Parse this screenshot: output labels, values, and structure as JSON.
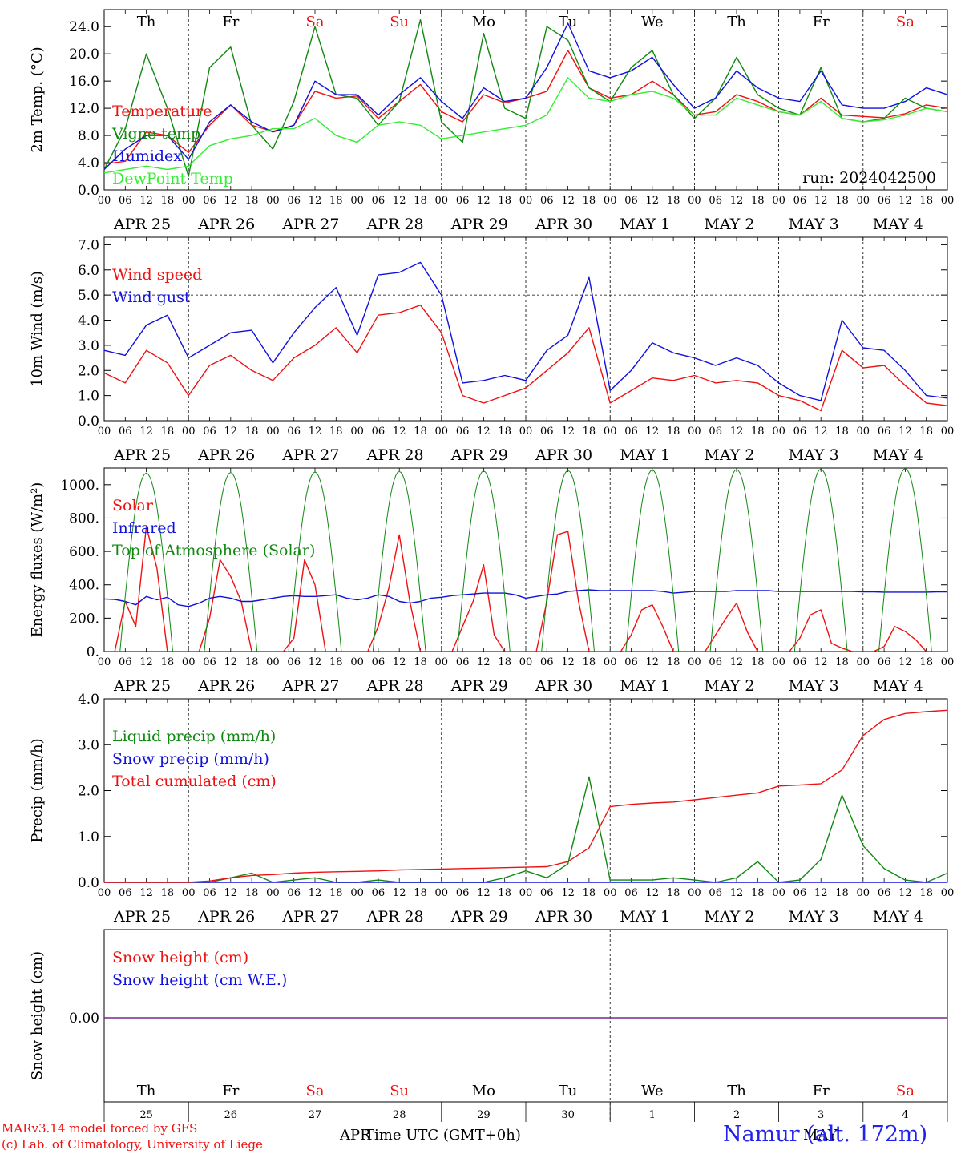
{
  "chart_data": [
    {
      "type": "line",
      "ylabel": "2m Temp. (°C)",
      "ylim": [
        0,
        26.5
      ],
      "yticks": [
        "0.0",
        "4.0",
        "8.0",
        "12.0",
        "16.0",
        "20.0",
        "24.0"
      ],
      "day_names": [
        "Th",
        "Fr",
        "Sa",
        "Su",
        "Mo",
        "Tu",
        "We",
        "Th",
        "Fr",
        "Sa"
      ],
      "day_colors": [
        "#000000",
        "#000000",
        "#ee1111",
        "#ee1111",
        "#000000",
        "#000000",
        "#000000",
        "#000000",
        "#000000",
        "#ee1111"
      ],
      "run_label": "run: 2024042500",
      "x_hours": [
        0,
        6,
        12,
        18,
        24,
        30,
        36,
        42,
        48,
        54,
        60,
        66,
        72,
        78,
        84,
        90,
        96,
        102,
        108,
        114,
        120,
        126,
        132,
        138,
        144,
        150,
        156,
        162,
        168,
        174,
        180,
        186,
        192,
        198,
        204,
        210,
        216,
        222,
        228,
        234,
        240
      ],
      "series": [
        {
          "name": "Temperature",
          "color": "#ee1111",
          "values": [
            3.8,
            4.2,
            8.5,
            8.0,
            5.5,
            9.5,
            12.5,
            9.5,
            8.6,
            9.5,
            14.5,
            13.5,
            13.8,
            10.5,
            13.0,
            15.5,
            11.5,
            10.0,
            14.0,
            12.8,
            13.5,
            14.5,
            20.5,
            15.0,
            13.5,
            14.0,
            16.0,
            14.0,
            11.0,
            11.5,
            14.0,
            13.0,
            11.5,
            11.0,
            13.5,
            11.0,
            10.8,
            10.6,
            11.2,
            12.5,
            12.0
          ]
        },
        {
          "name": "Vigne temp",
          "color": "#118811",
          "values": [
            3.0,
            9.0,
            20.0,
            12.0,
            2.0,
            18.0,
            21.0,
            9.5,
            6.0,
            13.0,
            24.0,
            14.0,
            13.5,
            9.5,
            13.0,
            25.0,
            10.0,
            7.0,
            23.0,
            12.0,
            10.5,
            24.0,
            22.0,
            15.0,
            13.0,
            18.0,
            20.5,
            14.0,
            10.5,
            13.5,
            19.5,
            14.0,
            12.0,
            11.0,
            18.0,
            10.5,
            10.0,
            10.5,
            13.5,
            12.0,
            11.5
          ]
        },
        {
          "name": "Humidex",
          "color": "#1111dd",
          "values": [
            3.0,
            6.0,
            8.0,
            8.0,
            4.5,
            10.0,
            12.5,
            10.0,
            8.5,
            9.5,
            16.0,
            14.0,
            14.0,
            11.0,
            14.0,
            16.5,
            13.0,
            10.5,
            15.0,
            13.0,
            13.5,
            18.0,
            24.5,
            17.5,
            16.5,
            17.5,
            19.5,
            15.5,
            12.0,
            13.5,
            17.5,
            15.0,
            13.5,
            13.0,
            17.5,
            12.5,
            12.0,
            12.0,
            13.0,
            15.0,
            14.0
          ]
        },
        {
          "name": "DewPoint Temp",
          "color": "#33ee33",
          "values": [
            2.5,
            3.0,
            3.5,
            3.0,
            3.5,
            6.5,
            7.5,
            8.0,
            9.0,
            9.0,
            10.5,
            8.0,
            7.0,
            9.5,
            10.0,
            9.5,
            7.5,
            8.0,
            8.5,
            9.0,
            9.5,
            11.0,
            16.5,
            13.5,
            13.0,
            14.0,
            14.5,
            13.5,
            11.0,
            11.0,
            13.5,
            12.5,
            11.5,
            11.0,
            13.0,
            10.5,
            10.0,
            10.3,
            11.0,
            12.0,
            11.5
          ]
        }
      ]
    },
    {
      "type": "line",
      "ylabel": "10m Wind (m/s)",
      "ylim": [
        0,
        7.3
      ],
      "yticks": [
        "0.0",
        "1.0",
        "2.0",
        "3.0",
        "4.0",
        "5.0",
        "6.0",
        "7.0"
      ],
      "ref_line": 5.0,
      "x_hours": [
        0,
        6,
        12,
        18,
        24,
        30,
        36,
        42,
        48,
        54,
        60,
        66,
        72,
        78,
        84,
        90,
        96,
        102,
        108,
        114,
        120,
        126,
        132,
        138,
        144,
        150,
        156,
        162,
        168,
        174,
        180,
        186,
        192,
        198,
        204,
        210,
        216,
        222,
        228,
        234,
        240
      ],
      "series": [
        {
          "name": "Wind speed",
          "color": "#ee1111",
          "values": [
            1.9,
            1.5,
            2.8,
            2.3,
            1.0,
            2.2,
            2.6,
            2.0,
            1.6,
            2.5,
            3.0,
            3.7,
            2.7,
            4.2,
            4.3,
            4.6,
            3.5,
            1.0,
            0.7,
            1.0,
            1.3,
            2.0,
            2.7,
            3.7,
            0.7,
            1.2,
            1.7,
            1.6,
            1.8,
            1.5,
            1.6,
            1.5,
            1.0,
            0.8,
            0.4,
            2.8,
            2.1,
            2.2,
            1.4,
            0.7,
            0.6
          ]
        },
        {
          "name": "Wind gust",
          "color": "#1111dd",
          "values": [
            2.8,
            2.6,
            3.8,
            4.2,
            2.5,
            3.0,
            3.5,
            3.6,
            2.3,
            3.5,
            4.5,
            5.3,
            3.4,
            5.8,
            5.9,
            6.3,
            5.0,
            1.5,
            1.6,
            1.8,
            1.6,
            2.8,
            3.4,
            5.7,
            1.2,
            2.0,
            3.1,
            2.7,
            2.5,
            2.2,
            2.5,
            2.2,
            1.5,
            1.0,
            0.8,
            4.0,
            2.9,
            2.8,
            2.0,
            1.0,
            0.9
          ]
        }
      ]
    },
    {
      "type": "line",
      "ylabel": "Energy fluxes (W/m²)",
      "ylim": [
        0,
        1100
      ],
      "yticks": [
        "0.",
        "200.",
        "400.",
        "600.",
        "800.",
        "1000."
      ],
      "x_hours": [
        0,
        3,
        6,
        9,
        12,
        15,
        18,
        21,
        24,
        27,
        30,
        33,
        36,
        39,
        42,
        45,
        48,
        51,
        54,
        57,
        60,
        63,
        66,
        69,
        72,
        75,
        78,
        81,
        84,
        87,
        90,
        93,
        96,
        99,
        102,
        105,
        108,
        111,
        114,
        117,
        120,
        123,
        126,
        129,
        132,
        135,
        138,
        141,
        144,
        147,
        150,
        153,
        156,
        159,
        162,
        165,
        168,
        171,
        174,
        177,
        180,
        183,
        186,
        189,
        192,
        195,
        198,
        201,
        204,
        207,
        210,
        213,
        216,
        219,
        222,
        225,
        228,
        231,
        234,
        237,
        240
      ],
      "series": [
        {
          "name": "Solar",
          "color": "#ee1111",
          "values": [
            0,
            0,
            300,
            150,
            750,
            500,
            0,
            0,
            0,
            0,
            200,
            550,
            450,
            300,
            0,
            0,
            0,
            0,
            80,
            550,
            400,
            0,
            0,
            0,
            0,
            0,
            150,
            380,
            700,
            300,
            0,
            0,
            0,
            0,
            150,
            300,
            520,
            100,
            0,
            0,
            0,
            0,
            300,
            700,
            720,
            300,
            0,
            0,
            0,
            0,
            100,
            250,
            280,
            150,
            0,
            0,
            0,
            0,
            100,
            200,
            290,
            120,
            0,
            0,
            0,
            0,
            80,
            220,
            250,
            50,
            20,
            0,
            0,
            0,
            30,
            150,
            120,
            70,
            0,
            0,
            0
          ]
        },
        {
          "name": "Infrared",
          "color": "#1111dd",
          "values": [
            315,
            312,
            300,
            280,
            330,
            310,
            325,
            280,
            270,
            290,
            320,
            330,
            320,
            300,
            300,
            310,
            320,
            330,
            335,
            330,
            330,
            335,
            340,
            320,
            310,
            320,
            340,
            330,
            300,
            290,
            300,
            320,
            325,
            335,
            340,
            345,
            350,
            350,
            350,
            340,
            320,
            330,
            340,
            345,
            360,
            365,
            370,
            365,
            365,
            365,
            365,
            365,
            365,
            360,
            350,
            355,
            360,
            360,
            360,
            360,
            365,
            365,
            365,
            365,
            360,
            360,
            360,
            360,
            360,
            360,
            360,
            360,
            358,
            358,
            356,
            356,
            356,
            356,
            356,
            358,
            358
          ]
        },
        {
          "name": "Top of Atmosphere (Solar)",
          "color": "#118811",
          "values": []
        }
      ]
    },
    {
      "type": "line",
      "ylabel": "Precip (mm/h)",
      "ylim": [
        0,
        4.0
      ],
      "yticks": [
        "0.0",
        "1.0",
        "2.0",
        "3.0",
        "4.0"
      ],
      "x_hours": [
        0,
        6,
        12,
        18,
        24,
        30,
        36,
        42,
        48,
        54,
        60,
        66,
        72,
        78,
        84,
        90,
        96,
        102,
        108,
        114,
        120,
        126,
        132,
        138,
        144,
        150,
        156,
        162,
        168,
        174,
        180,
        186,
        192,
        198,
        204,
        210,
        216,
        222,
        228,
        234,
        240
      ],
      "series": [
        {
          "name": "Liquid precip (mm/h)",
          "color": "#118811",
          "values": [
            0,
            0,
            0,
            0,
            0,
            0,
            0.1,
            0.2,
            0,
            0.05,
            0.1,
            0,
            0,
            0.05,
            0,
            0,
            0,
            0,
            0,
            0.1,
            0.25,
            0.1,
            0.4,
            2.3,
            0.05,
            0.05,
            0.05,
            0.1,
            0.05,
            0,
            0.1,
            0.45,
            0,
            0.05,
            0.5,
            1.9,
            0.8,
            0.3,
            0.05,
            0,
            0.2
          ]
        },
        {
          "name": "Snow precip (mm/h)",
          "color": "#1111dd",
          "values": [
            0,
            0,
            0,
            0,
            0,
            0,
            0,
            0,
            0,
            0,
            0,
            0,
            0,
            0,
            0,
            0,
            0,
            0,
            0,
            0,
            0,
            0,
            0,
            0,
            0,
            0,
            0,
            0,
            0,
            0,
            0,
            0,
            0,
            0,
            0,
            0,
            0,
            0,
            0,
            0,
            0
          ]
        },
        {
          "name": "Total cumulated (cm)",
          "color": "#ee1111",
          "values": [
            0,
            0,
            0,
            0,
            0,
            0.03,
            0.1,
            0.15,
            0.17,
            0.2,
            0.22,
            0.23,
            0.24,
            0.25,
            0.27,
            0.28,
            0.29,
            0.3,
            0.31,
            0.32,
            0.33,
            0.34,
            0.45,
            0.75,
            1.65,
            1.7,
            1.73,
            1.75,
            1.8,
            1.85,
            1.9,
            1.95,
            2.1,
            2.12,
            2.15,
            2.45,
            3.2,
            3.55,
            3.68,
            3.72,
            3.75
          ]
        }
      ]
    },
    {
      "type": "line",
      "ylabel": "Snow height (cm)",
      "ytick": "0.00",
      "series": [
        {
          "name": "Snow height (cm)",
          "color": "#ee1111",
          "values": [
            0,
            0
          ]
        },
        {
          "name": "Snow height (cm W.E.)",
          "color": "#1111dd",
          "values": [
            0,
            0
          ]
        }
      ],
      "day_names": [
        "Th",
        "Fr",
        "Sa",
        "Su",
        "Mo",
        "Tu",
        "We",
        "Th",
        "Fr",
        "Sa"
      ],
      "day_colors": [
        "#000000",
        "#000000",
        "#ee1111",
        "#ee1111",
        "#000000",
        "#000000",
        "#000000",
        "#000000",
        "#000000",
        "#ee1111"
      ],
      "day_numbers": [
        "25",
        "26",
        "27",
        "28",
        "29",
        "30",
        "1",
        "2",
        "3",
        "4"
      ],
      "month_left": "APR",
      "month_right": "MAY",
      "xlabel": "Time UTC (GMT+0h)"
    }
  ],
  "x_axis": {
    "hour_labels": [
      "00",
      "06",
      "12",
      "18"
    ],
    "last_hour_label": "00",
    "date_labels": [
      "APR 25",
      "APR 26",
      "APR 27",
      "APR 28",
      "APR 29",
      "APR 30",
      "MAY  1",
      "MAY  2",
      "MAY  3",
      "MAY  4"
    ]
  },
  "footer": {
    "credit_line1": "MARv3.14 model forced by GFS",
    "credit_line2": "(c) Lab. of Climatology, University of Liege",
    "station": "Namur (alt. 172m)",
    "credit_color": "#ee1111",
    "station_color": "#2222ee"
  }
}
